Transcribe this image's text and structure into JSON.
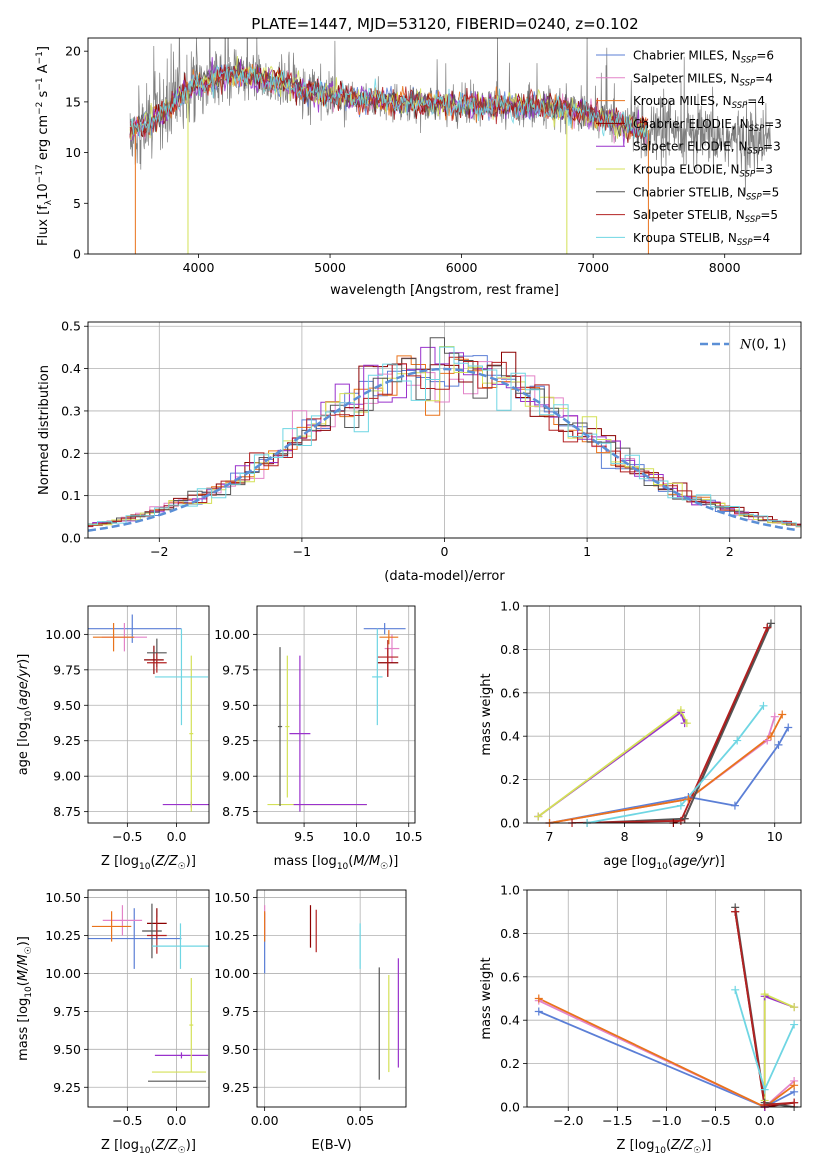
{
  "figure": {
    "title": "PLATE=1447, MJD=53120, FIBERID=0240, z=0.102"
  },
  "colors": {
    "chabrier_miles": "#5b7fd6",
    "salpeter_miles": "#e383c8",
    "kroupa_miles": "#e9731c",
    "chabrier_elodie": "#8b0000",
    "salpeter_elodie": "#9932cc",
    "kroupa_elodie": "#d4e157",
    "chabrier_stelib": "#555555",
    "salpeter_stelib": "#b22222",
    "kroupa_stelib": "#6fd6e3",
    "normal": "#5b8fd6",
    "grid": "#b0b0b0"
  },
  "chart_data": [
    {
      "id": "spectrum",
      "type": "line",
      "title": "PLATE=1447, MJD=53120, FIBERID=0240, z=0.102",
      "xlabel": "wavelength [Angstrom, rest frame]",
      "ylabel": "Flux [f_λ 10^-17 erg cm^-2 s^-1 A^-1]",
      "xlim": [
        3160,
        8580
      ],
      "ylim": [
        0,
        21.3
      ],
      "xticks": [
        4000,
        5000,
        6000,
        7000,
        8000
      ],
      "yticks": [
        0,
        5,
        10,
        15,
        20
      ],
      "grid": false,
      "legend_position": "top-right",
      "legend": [
        {
          "label": "Chabrier MILES, N",
          "sub": "SSP",
          "suffix": "=6",
          "color_key": "chabrier_miles"
        },
        {
          "label": "Salpeter MILES, N",
          "sub": "SSP",
          "suffix": "=4",
          "color_key": "salpeter_miles"
        },
        {
          "label": "Kroupa MILES, N",
          "sub": "SSP",
          "suffix": "=4",
          "color_key": "kroupa_miles"
        },
        {
          "label": "Chabrier ELODIE, N",
          "sub": "SSP",
          "suffix": "=3",
          "color_key": "chabrier_elodie"
        },
        {
          "label": "Salpeter ELODIE, N",
          "sub": "SSP",
          "suffix": "=3",
          "color_key": "salpeter_elodie"
        },
        {
          "label": "Kroupa ELODIE, N",
          "sub": "SSP",
          "suffix": "=3",
          "color_key": "kroupa_elodie"
        },
        {
          "label": "Chabrier STELIB, N",
          "sub": "SSP",
          "suffix": "=5",
          "color_key": "chabrier_stelib"
        },
        {
          "label": "Salpeter STELIB, N",
          "sub": "SSP",
          "suffix": "=5",
          "color_key": "salpeter_stelib"
        },
        {
          "label": "Kroupa STELIB, N",
          "sub": "SSP",
          "suffix": "=4",
          "color_key": "kroupa_stelib"
        }
      ],
      "continuum": [
        [
          3480,
          12.0
        ],
        [
          3700,
          13.5
        ],
        [
          3950,
          16.5
        ],
        [
          4100,
          17.3
        ],
        [
          4300,
          17.8
        ],
        [
          4600,
          17.0
        ],
        [
          4900,
          15.8
        ],
        [
          5200,
          15.3
        ],
        [
          5600,
          14.9
        ],
        [
          6000,
          14.7
        ],
        [
          6300,
          14.6
        ],
        [
          6600,
          14.6
        ],
        [
          6900,
          14.0
        ],
        [
          7200,
          12.8
        ],
        [
          7500,
          12.0
        ],
        [
          7800,
          11.6
        ],
        [
          8200,
          11.1
        ],
        [
          8400,
          11.0
        ]
      ],
      "model_range": [
        3480,
        7420
      ],
      "data_range": [
        3480,
        8350
      ],
      "model_edge_drops": [
        {
          "x": 3520,
          "color_key": "kroupa_miles"
        },
        {
          "x": 3920,
          "color_key": "kroupa_elodie"
        },
        {
          "x": 6800,
          "color_key": "kroupa_elodie"
        },
        {
          "x": 7420,
          "color_key": "kroupa_miles"
        }
      ]
    },
    {
      "id": "residuals",
      "type": "histogram",
      "xlabel": "(data-model)/error",
      "ylabel": "Normed distribution",
      "xlim": [
        -2.5,
        2.5
      ],
      "ylim": [
        0,
        0.51
      ],
      "xticks": [
        -2,
        -1,
        0,
        1,
        2
      ],
      "yticks": [
        0.0,
        0.1,
        0.2,
        0.3,
        0.4,
        0.5
      ],
      "grid": true,
      "legend_position": "top-right",
      "reference_curve": {
        "label_pre": "N",
        "label_post": "(0, 1)",
        "mean": 0,
        "sigma": 1,
        "color_key": "normal"
      },
      "bin_width": 0.1
    },
    {
      "id": "age_vs_Z",
      "type": "scatter",
      "xlabel": "Z [log10(Z/Z☉)]",
      "ylabel": "age [log10(age/yr)]",
      "xlim": [
        -0.9,
        0.33
      ],
      "ylim": [
        8.67,
        10.2
      ],
      "xticks": [
        -0.5,
        0.0
      ],
      "yticks": [
        8.75,
        9.0,
        9.25,
        9.5,
        9.75,
        10.0
      ],
      "grid": true,
      "points": [
        {
          "x": -0.45,
          "y": 10.04,
          "xerr": 0.5,
          "yerr": 0.1,
          "color_key": "chabrier_miles"
        },
        {
          "x": -0.53,
          "y": 9.98,
          "xerr": 0.23,
          "yerr": 0.1,
          "color_key": "salpeter_miles"
        },
        {
          "x": -0.64,
          "y": 9.98,
          "xerr": 0.21,
          "yerr": 0.1,
          "color_key": "kroupa_miles"
        },
        {
          "x": -0.23,
          "y": 9.82,
          "xerr": 0.1,
          "yerr": 0.1,
          "color_key": "chabrier_elodie"
        },
        {
          "x": 0.15,
          "y": 8.8,
          "xerr": 0.29,
          "yerr": 0.02,
          "color_key": "salpeter_elodie"
        },
        {
          "x": 0.15,
          "y": 9.3,
          "xerr": 0.02,
          "yerr": 0.55,
          "color_key": "kroupa_elodie"
        },
        {
          "x": -0.2,
          "y": 9.87,
          "xerr": 0.1,
          "yerr": 0.1,
          "color_key": "chabrier_stelib"
        },
        {
          "x": -0.2,
          "y": 9.8,
          "xerr": 0.1,
          "yerr": 0.07,
          "color_key": "salpeter_stelib"
        },
        {
          "x": 0.05,
          "y": 9.7,
          "xerr": 0.27,
          "yerr": 0.34,
          "color_key": "kroupa_stelib"
        }
      ]
    },
    {
      "id": "age_vs_mass",
      "type": "scatter",
      "xlabel": "mass [log10(M/M☉)]",
      "ylabel": "",
      "xlim": [
        9.05,
        10.56
      ],
      "ylim": [
        8.67,
        10.2
      ],
      "xticks": [
        9.5,
        10.0,
        10.5
      ],
      "yticks": [
        8.75,
        9.0,
        9.25,
        9.5,
        9.75,
        10.0
      ],
      "grid": true,
      "points": [
        {
          "x": 10.27,
          "y": 10.04,
          "xerr": 0.2,
          "yerr": 0.04,
          "color_key": "chabrier_miles"
        },
        {
          "x": 10.34,
          "y": 9.9,
          "xerr": 0.07,
          "yerr": 0.1,
          "color_key": "salpeter_miles"
        },
        {
          "x": 10.31,
          "y": 9.98,
          "xerr": 0.09,
          "yerr": 0.05,
          "color_key": "kroupa_miles"
        },
        {
          "x": 10.3,
          "y": 9.8,
          "xerr": 0.1,
          "yerr": 0.1,
          "color_key": "chabrier_elodie"
        },
        {
          "x": 9.46,
          "y": 9.3,
          "xerr": 0.1,
          "yerr": 0.55,
          "color_key": "salpeter_elodie"
        },
        {
          "x": 9.34,
          "y": 9.35,
          "xerr": 0.02,
          "yerr": 0.5,
          "color_key": "kroupa_elodie"
        },
        {
          "x": 9.27,
          "y": 9.35,
          "xerr": 0.02,
          "yerr": 0.56,
          "color_key": "chabrier_stelib"
        },
        {
          "x": 10.3,
          "y": 9.84,
          "xerr": 0.1,
          "yerr": 0.12,
          "color_key": "salpeter_stelib"
        },
        {
          "x": 10.2,
          "y": 9.7,
          "xerr": 0.05,
          "yerr": 0.34,
          "color_key": "kroupa_stelib"
        }
      ],
      "extra_segments": [
        {
          "x1": 9.15,
          "y1": 8.8,
          "x2": 10.1,
          "y2": 8.8,
          "color_key": "kroupa_elodie"
        },
        {
          "x1": 9.4,
          "y1": 8.8,
          "x2": 10.1,
          "y2": 8.8,
          "color_key": "salpeter_elodie"
        }
      ]
    },
    {
      "id": "mass_weight_vs_age",
      "type": "line",
      "xlabel": "age [log10(age/yr)]",
      "ylabel": "mass weight",
      "xlim": [
        6.7,
        10.35
      ],
      "ylim": [
        0,
        1.0
      ],
      "xticks": [
        7,
        8,
        9,
        10
      ],
      "yticks": [
        0.0,
        0.2,
        0.4,
        0.6,
        0.8,
        1.0
      ],
      "grid": true,
      "series": [
        {
          "color_key": "chabrier_miles",
          "x": [
            7.0,
            8.85,
            9.47,
            10.05,
            10.18
          ],
          "y": [
            0.0,
            0.12,
            0.08,
            0.36,
            0.44
          ]
        },
        {
          "color_key": "salpeter_miles",
          "x": [
            7.0,
            8.85,
            9.9,
            10.0
          ],
          "y": [
            0.0,
            0.11,
            0.38,
            0.49
          ]
        },
        {
          "color_key": "kroupa_miles",
          "x": [
            7.0,
            8.85,
            9.95,
            10.1
          ],
          "y": [
            0.0,
            0.11,
            0.4,
            0.5
          ]
        },
        {
          "color_key": "chabrier_elodie",
          "x": [
            8.65,
            8.8,
            9.9
          ],
          "y": [
            0.0,
            0.02,
            0.9
          ]
        },
        {
          "color_key": "salpeter_elodie",
          "x": [
            6.85,
            8.75,
            8.8
          ],
          "y": [
            0.03,
            0.51,
            0.46
          ]
        },
        {
          "color_key": "kroupa_elodie",
          "x": [
            6.85,
            8.75,
            8.83
          ],
          "y": [
            0.03,
            0.52,
            0.46
          ]
        },
        {
          "color_key": "chabrier_stelib",
          "x": [
            7.5,
            8.8,
            9.95
          ],
          "y": [
            0.0,
            0.02,
            0.92
          ]
        },
        {
          "color_key": "salpeter_stelib",
          "x": [
            7.3,
            8.75,
            9.9
          ],
          "y": [
            0.0,
            0.01,
            0.9
          ]
        },
        {
          "color_key": "kroupa_stelib",
          "x": [
            7.5,
            8.75,
            9.5,
            9.85
          ],
          "y": [
            0.0,
            0.08,
            0.38,
            0.54
          ]
        }
      ]
    },
    {
      "id": "mass_vs_Z",
      "type": "scatter",
      "xlabel": "Z [log10(Z/Z☉)]",
      "ylabel": "mass [log10(M/M☉)]",
      "xlim": [
        -0.9,
        0.33
      ],
      "ylim": [
        9.12,
        10.55
      ],
      "xticks": [
        -0.5,
        0.0
      ],
      "yticks": [
        9.25,
        9.5,
        9.75,
        10.0,
        10.25,
        10.5
      ],
      "grid": true,
      "points": [
        {
          "x": -0.43,
          "y": 10.23,
          "xerr": 0.48,
          "yerr": 0.2,
          "color_key": "chabrier_miles"
        },
        {
          "x": -0.55,
          "y": 10.35,
          "xerr": 0.2,
          "yerr": 0.1,
          "color_key": "salpeter_miles"
        },
        {
          "x": -0.66,
          "y": 10.31,
          "xerr": 0.2,
          "yerr": 0.1,
          "color_key": "kroupa_miles"
        },
        {
          "x": -0.2,
          "y": 10.33,
          "xerr": 0.1,
          "yerr": 0.1,
          "color_key": "chabrier_elodie"
        },
        {
          "x": 0.05,
          "y": 9.46,
          "xerr": 0.27,
          "yerr": 0.02,
          "color_key": "salpeter_elodie"
        },
        {
          "x": 0.15,
          "y": 9.66,
          "xerr": 0.02,
          "yerr": 0.31,
          "color_key": "kroupa_elodie"
        },
        {
          "x": -0.25,
          "y": 10.28,
          "xerr": 0.1,
          "yerr": 0.18,
          "color_key": "chabrier_stelib"
        },
        {
          "x": -0.2,
          "y": 10.25,
          "xerr": 0.1,
          "yerr": 0.12,
          "color_key": "salpeter_stelib"
        },
        {
          "x": 0.04,
          "y": 10.18,
          "xerr": 0.29,
          "yerr": 0.15,
          "color_key": "kroupa_stelib"
        }
      ],
      "extra_segments": [
        {
          "x1": -0.29,
          "y1": 9.29,
          "x2": 0.3,
          "y2": 9.29,
          "color_key": "chabrier_stelib"
        },
        {
          "x1": -0.25,
          "y1": 9.35,
          "x2": 0.3,
          "y2": 9.35,
          "color_key": "kroupa_elodie"
        }
      ]
    },
    {
      "id": "mass_vs_ebv",
      "type": "scatter",
      "xlabel": "E(B-V)",
      "ylabel": "",
      "xlim": [
        -0.004,
        0.074
      ],
      "ylim": [
        9.12,
        10.55
      ],
      "xticks": [
        0.0,
        0.05
      ],
      "yticks": [
        9.25,
        9.5,
        9.75,
        10.0,
        10.25,
        10.5
      ],
      "grid": true,
      "points": [
        {
          "x": 0.0,
          "y": 10.2,
          "xerr": 0,
          "yerr": 0.2,
          "color_key": "chabrier_miles"
        },
        {
          "x": 0.0,
          "y": 10.35,
          "xerr": 0,
          "yerr": 0.1,
          "color_key": "salpeter_miles"
        },
        {
          "x": 0.0,
          "y": 10.31,
          "xerr": 0,
          "yerr": 0.1,
          "color_key": "kroupa_miles"
        },
        {
          "x": 0.024,
          "y": 10.31,
          "xerr": 0,
          "yerr": 0.14,
          "color_key": "chabrier_elodie"
        },
        {
          "x": 0.07,
          "y": 9.74,
          "xerr": 0,
          "yerr": 0.36,
          "color_key": "salpeter_elodie"
        },
        {
          "x": 0.065,
          "y": 9.67,
          "xerr": 0,
          "yerr": 0.32,
          "color_key": "kroupa_elodie"
        },
        {
          "x": 0.06,
          "y": 9.67,
          "xerr": 0,
          "yerr": 0.37,
          "color_key": "chabrier_stelib"
        },
        {
          "x": 0.027,
          "y": 10.28,
          "xerr": 0,
          "yerr": 0.14,
          "color_key": "salpeter_stelib"
        },
        {
          "x": 0.05,
          "y": 10.18,
          "xerr": 0,
          "yerr": 0.15,
          "color_key": "kroupa_stelib"
        }
      ]
    },
    {
      "id": "mass_weight_vs_Z",
      "type": "line",
      "xlabel": "Z [log10(Z/Z☉)]",
      "ylabel": "mass weight",
      "xlim": [
        -2.42,
        0.37
      ],
      "ylim": [
        0,
        1.0
      ],
      "xticks": [
        -2.0,
        -1.5,
        -1.0,
        -0.5,
        0.0
      ],
      "yticks": [
        0.0,
        0.2,
        0.4,
        0.6,
        0.8,
        1.0
      ],
      "grid": true,
      "series": [
        {
          "color_key": "chabrier_miles",
          "x": [
            -2.3,
            0.0,
            0.3
          ],
          "y": [
            0.44,
            0.0,
            0.07
          ]
        },
        {
          "color_key": "salpeter_miles",
          "x": [
            -2.3,
            0.0,
            0.3
          ],
          "y": [
            0.49,
            0.0,
            0.12
          ]
        },
        {
          "color_key": "kroupa_miles",
          "x": [
            -2.3,
            0.0,
            0.3
          ],
          "y": [
            0.5,
            0.0,
            0.1
          ]
        },
        {
          "color_key": "chabrier_elodie",
          "x": [
            -0.3,
            0.0,
            0.3
          ],
          "y": [
            0.9,
            0.0,
            0.02
          ]
        },
        {
          "color_key": "salpeter_elodie",
          "x": [
            0.0,
            0.0,
            0.3
          ],
          "y": [
            0.0,
            0.51,
            0.46
          ]
        },
        {
          "color_key": "kroupa_elodie",
          "x": [
            0.0,
            0.0,
            0.3
          ],
          "y": [
            0.03,
            0.52,
            0.46
          ]
        },
        {
          "color_key": "chabrier_stelib",
          "x": [
            -0.3,
            0.0,
            0.3
          ],
          "y": [
            0.92,
            0.02,
            0.0
          ]
        },
        {
          "color_key": "salpeter_stelib",
          "x": [
            -0.3,
            0.0,
            0.3
          ],
          "y": [
            0.9,
            0.01,
            0.02
          ]
        },
        {
          "color_key": "kroupa_stelib",
          "x": [
            -0.3,
            0.0,
            0.3
          ],
          "y": [
            0.54,
            0.08,
            0.38
          ]
        }
      ]
    }
  ]
}
